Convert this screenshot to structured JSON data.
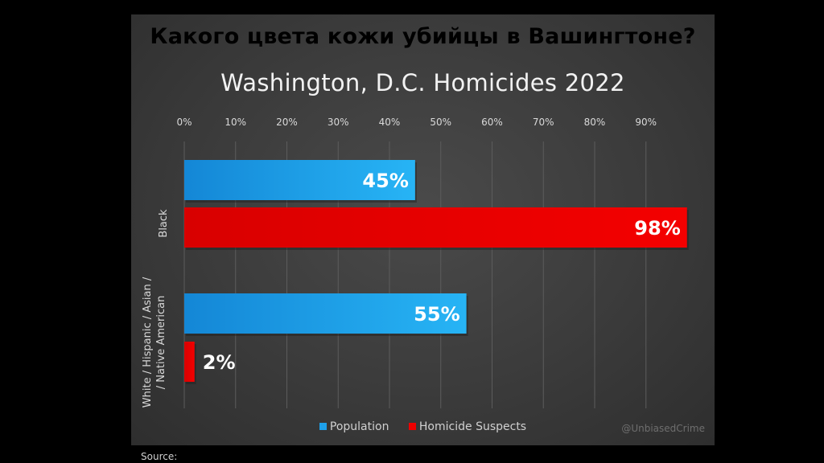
{
  "header": {
    "title": "Какого цвета кожи убийцы в Вашингтоне?"
  },
  "footer": {
    "source_label": "Source:"
  },
  "watermark": "@UnbiasedCrime",
  "colors": {
    "population": "#1ea0ea",
    "suspects": "#ee0000",
    "grid": "#5c5c5c",
    "tick_text": "#d9d9d9"
  },
  "chart_data": {
    "type": "bar",
    "orientation": "horizontal",
    "title": "Washington, D.C. Homicides 2022",
    "categories": [
      "Black",
      "White / Hispanic / Asian / Native American"
    ],
    "series": [
      {
        "name": "Population",
        "values": [
          45,
          55
        ],
        "labels": [
          "45%",
          "55%"
        ]
      },
      {
        "name": "Homicide Suspects",
        "values": [
          98,
          2
        ],
        "labels": [
          "98%",
          "2%"
        ]
      }
    ],
    "xlim": [
      0,
      98
    ],
    "x_ticks": [
      0,
      10,
      20,
      30,
      40,
      50,
      60,
      70,
      80,
      90
    ],
    "x_tick_labels": [
      "0%",
      "10%",
      "20%",
      "30%",
      "40%",
      "50%",
      "60%",
      "70%",
      "80%",
      "90%"
    ],
    "x_axis_position": "top",
    "grid": true,
    "legend_position": "bottom"
  }
}
